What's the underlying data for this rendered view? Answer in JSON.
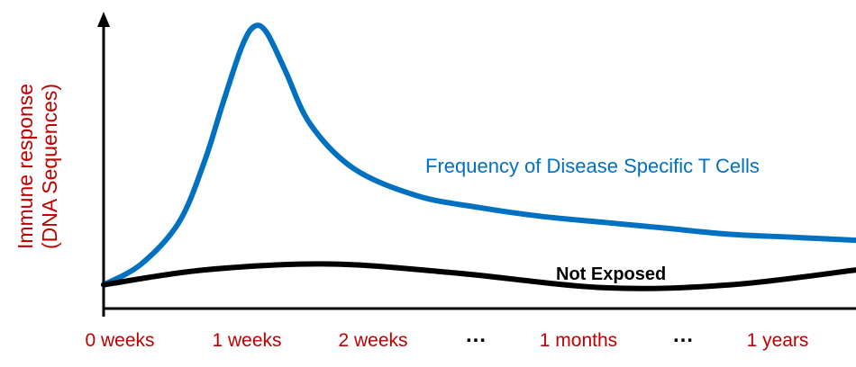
{
  "chart_data": {
    "type": "line",
    "title": "",
    "ylabel_lines": [
      "Immune response",
      "(DNA Sequences)"
    ],
    "xlabel": "",
    "x_tick_labels": [
      "0 weeks",
      "1 weeks",
      "2 weeks",
      "1 months",
      "1 years"
    ],
    "x_ellipses": [
      "…",
      "…"
    ],
    "axis_arrow": "y",
    "grid": false,
    "legend": "none",
    "series": [
      {
        "name": "Frequency of Disease Specific T Cells",
        "color": "#0070c0",
        "label_color": "#0070c0",
        "points": [
          [
            0.0,
            0.08
          ],
          [
            0.3,
            0.15
          ],
          [
            0.6,
            0.29
          ],
          [
            0.8,
            0.49
          ],
          [
            0.95,
            0.69
          ],
          [
            1.1,
            0.88
          ],
          [
            1.2,
            0.95
          ],
          [
            1.3,
            0.93
          ],
          [
            1.45,
            0.8
          ],
          [
            1.65,
            0.62
          ],
          [
            2.0,
            0.47
          ],
          [
            2.5,
            0.38
          ],
          [
            3.0,
            0.34
          ],
          [
            3.5,
            0.31
          ],
          [
            4.0,
            0.29
          ],
          [
            4.5,
            0.27
          ],
          [
            5.0,
            0.25
          ],
          [
            5.5,
            0.24
          ],
          [
            6.0,
            0.23
          ]
        ]
      },
      {
        "name": "Not Exposed",
        "color": "#000000",
        "label_color": "#000000",
        "points": [
          [
            0.0,
            0.08
          ],
          [
            0.8,
            0.13
          ],
          [
            1.8,
            0.15
          ],
          [
            2.8,
            0.12
          ],
          [
            4.0,
            0.07
          ],
          [
            5.0,
            0.08
          ],
          [
            6.0,
            0.13
          ]
        ]
      }
    ],
    "tick_color": "#c00000",
    "ylabel_color": "#c00000"
  }
}
